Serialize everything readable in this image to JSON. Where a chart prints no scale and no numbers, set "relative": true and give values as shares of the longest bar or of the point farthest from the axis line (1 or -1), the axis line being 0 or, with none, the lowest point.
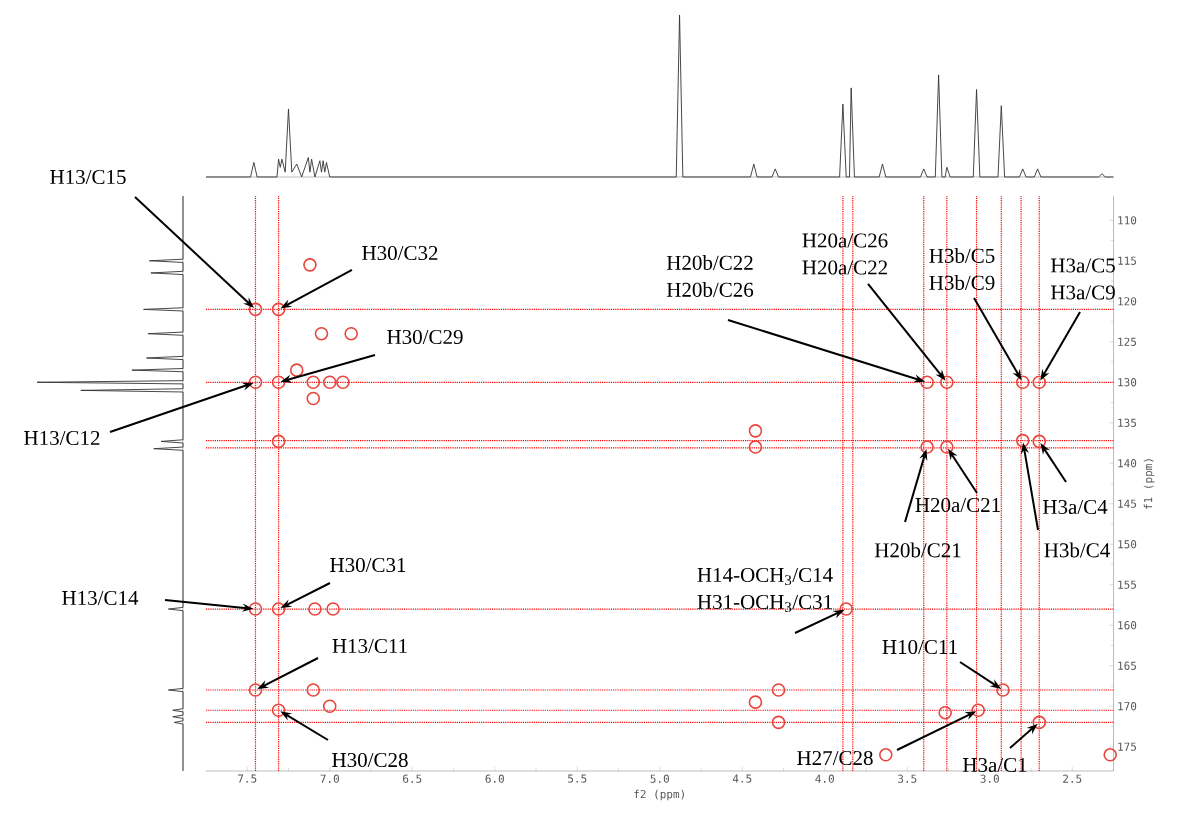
{
  "chart_data": [
    {
      "type": "line",
      "relative": true,
      "xlim": [
        7.75,
        2.25
      ],
      "series": [
        {
          "color": "#333333",
          "x": [
            7.75,
            7.48,
            7.46,
            7.44,
            7.32,
            7.31,
            7.3,
            7.29,
            7.27,
            7.25,
            7.23,
            7.2,
            7.17,
            7.13,
            7.12,
            7.11,
            7.09,
            7.06,
            7.05,
            7.04,
            7.03,
            7.02,
            7.0,
            4.9,
            4.88,
            4.86,
            4.45,
            4.43,
            4.41,
            4.32,
            4.3,
            4.28,
            3.91,
            3.89,
            3.87,
            3.85,
            3.84,
            3.82,
            3.67,
            3.65,
            3.63,
            3.42,
            3.4,
            3.38,
            3.33,
            3.31,
            3.29,
            3.27,
            3.26,
            3.24,
            3.1,
            3.08,
            3.06,
            2.95,
            2.93,
            2.91,
            2.82,
            2.8,
            2.78,
            2.73,
            2.71,
            2.69,
            2.34,
            2.32,
            2.3,
            2.25
          ],
          "values": [
            0,
            0,
            0.09,
            0,
            0,
            0.11,
            0.06,
            0.11,
            0.03,
            0.42,
            0.03,
            0.08,
            0,
            0.12,
            0.03,
            0.11,
            0,
            0.1,
            0.03,
            0.1,
            0.03,
            0.09,
            0,
            0,
            1,
            0,
            0,
            0.08,
            0,
            0,
            0.05,
            0,
            0,
            0.45,
            0,
            0,
            0.55,
            0,
            0,
            0.08,
            0,
            0,
            0.05,
            0,
            0,
            0.63,
            0,
            0,
            0.06,
            0,
            0,
            0.54,
            0,
            0,
            0.44,
            0,
            0,
            0.05,
            0,
            0,
            0.05,
            0,
            0,
            0.02,
            0,
            0
          ]
        }
      ]
    },
    {
      "type": "scatter",
      "xlabel": "f2 (ppm)",
      "ylabel": "f1 (ppm)",
      "marker": "circle",
      "xlim": [
        7.75,
        2.25
      ],
      "ylim": [
        178,
        107
      ],
      "xticks": [
        7.5,
        {
          "value": 7,
          "label": "7.0"
        },
        6.5,
        {
          "value": 6,
          "label": "6.0"
        },
        5.5,
        {
          "value": 5,
          "label": "5.0"
        },
        4.5,
        {
          "value": 4,
          "label": "4.0"
        },
        3.5,
        {
          "value": 3,
          "label": "3.0"
        },
        2.5
      ],
      "yticks": [
        110,
        115,
        120,
        125,
        130,
        135,
        140,
        145,
        150,
        155,
        160,
        165,
        170,
        175
      ],
      "series": [
        {
          "color": "#e8453c",
          "x": [
            7.45,
            7.31,
            7.12,
            7.05,
            6.87,
            7.45,
            7.31,
            7.2,
            7.1,
            7.0,
            6.92,
            7.1,
            7.31,
            4.42,
            4.42,
            3.38,
            3.26,
            2.8,
            2.7,
            3.38,
            3.26,
            2.8,
            2.7,
            7.45,
            7.31,
            7.09,
            6.98,
            3.87,
            7.45,
            7.31,
            7.1,
            7.0,
            4.28,
            4.28,
            4.42,
            3.63,
            2.92,
            3.07,
            3.27,
            2.7,
            2.27
          ],
          "values": [
            121,
            121,
            115.5,
            124,
            124,
            130,
            130,
            128.5,
            130,
            130,
            130,
            132,
            137.3,
            136,
            138,
            130,
            130,
            130,
            130,
            138,
            138,
            137.2,
            137.3,
            158,
            158,
            158,
            158,
            158,
            168,
            170.5,
            168,
            170,
            168,
            172,
            169.5,
            176,
            168,
            170.5,
            170.8,
            172,
            176
          ]
        }
      ],
      "ref_lines": [
        {
          "axis": "x",
          "value": 7.45,
          "color": "#ff0000",
          "line_style": "dotted"
        },
        {
          "axis": "x",
          "value": 7.31,
          "color": "#ff0000",
          "line_style": "dotted"
        },
        {
          "axis": "x",
          "value": 3.89,
          "color": "#ff0000",
          "line_style": "dotted"
        },
        {
          "axis": "x",
          "value": 3.83,
          "color": "#ff0000",
          "line_style": "dotted"
        },
        {
          "axis": "x",
          "value": 3.4,
          "color": "#ff0000",
          "line_style": "dotted"
        },
        {
          "axis": "x",
          "value": 3.26,
          "color": "#ff0000",
          "line_style": "dotted"
        },
        {
          "axis": "x",
          "value": 3.08,
          "color": "#ff0000",
          "line_style": "dotted"
        },
        {
          "axis": "x",
          "value": 2.93,
          "color": "#ff0000",
          "line_style": "dotted"
        },
        {
          "axis": "x",
          "value": 2.81,
          "color": "#ff0000",
          "line_style": "dotted"
        },
        {
          "axis": "x",
          "value": 2.7,
          "color": "#ff0000",
          "line_style": "dotted"
        },
        {
          "axis": "y",
          "value": 121,
          "color": "#ff0000",
          "line_style": "dotted"
        },
        {
          "axis": "y",
          "value": 130,
          "color": "#ff0000",
          "line_style": "dotted"
        },
        {
          "axis": "y",
          "value": 137.2,
          "color": "#ff0000",
          "line_style": "dotted"
        },
        {
          "axis": "y",
          "value": 138.1,
          "color": "#ff0000",
          "line_style": "dotted"
        },
        {
          "axis": "y",
          "value": 158,
          "color": "#ff0000",
          "line_style": "dotted"
        },
        {
          "axis": "y",
          "value": 168,
          "color": "#ff0000",
          "line_style": "dotted"
        },
        {
          "axis": "y",
          "value": 170.5,
          "color": "#ff0000",
          "line_style": "dotted"
        },
        {
          "axis": "y",
          "value": 172,
          "color": "#ff0000",
          "line_style": "dotted"
        }
      ],
      "annotations": [
        {
          "text": "H13/C15",
          "x": 7.45,
          "y": 121
        },
        {
          "text": "H30/C32",
          "x": 7.31,
          "y": 121
        },
        {
          "text": "H30/C29",
          "x": 7.31,
          "y": 130
        },
        {
          "text": "H13/C12",
          "x": 7.45,
          "y": 130
        },
        {
          "text": "H20b/C22 H20b/C26",
          "x": 3.38,
          "y": 130
        },
        {
          "text": "H20a/C26 H20a/C22",
          "x": 3.26,
          "y": 130
        },
        {
          "text": "H3b/C5 H3b/C9",
          "x": 2.8,
          "y": 130
        },
        {
          "text": "H3a/C5 H3a/C9",
          "x": 2.7,
          "y": 130
        },
        {
          "text": "H20b/C21",
          "x": 3.38,
          "y": 138
        },
        {
          "text": "H20a/C21",
          "x": 3.26,
          "y": 138
        },
        {
          "text": "H3a/C4",
          "x": 2.7,
          "y": 137.3
        },
        {
          "text": "H3b/C4",
          "x": 2.8,
          "y": 137.2
        },
        {
          "text": "H13/C14",
          "x": 7.45,
          "y": 158
        },
        {
          "text": "H30/C31",
          "x": 7.31,
          "y": 158
        },
        {
          "text": "H14-OCH$_{3}$/C14 H31-OCH$_{3}$/C31",
          "x": 3.87,
          "y": 158
        },
        {
          "text": "H13/C11",
          "x": 7.45,
          "y": 168
        },
        {
          "text": "H30/C28",
          "x": 7.31,
          "y": 170.5
        },
        {
          "text": "H10/C11",
          "x": 2.92,
          "y": 168
        },
        {
          "text": "H27/C28",
          "x": 3.07,
          "y": 170.5
        },
        {
          "text": "H3a/C1",
          "x": 2.7,
          "y": 172
        }
      ]
    },
    {
      "type": "line",
      "orientation": "horizontal",
      "relative": true,
      "ylim": [
        178,
        107
      ],
      "series": [
        {
          "color": "#333333",
          "x": [
            107,
            114.8,
            115,
            115.2,
            116.3,
            116.5,
            116.7,
            120.8,
            121,
            121.2,
            123.8,
            124,
            124.2,
            126.8,
            127,
            127.2,
            128.3,
            128.5,
            128.7,
            129.8,
            130,
            130.2,
            130.8,
            131,
            131.2,
            137.1,
            137.3,
            137.5,
            138,
            138.2,
            138.4,
            157.8,
            158,
            158.2,
            167.8,
            168,
            168.2,
            170.3,
            170.5,
            170.7,
            171.1,
            171.3,
            171.5,
            171.8,
            172,
            172.2,
            178
          ],
          "values": [
            0,
            0,
            -0.23,
            0,
            0,
            -0.22,
            0,
            0,
            -0.27,
            0,
            0,
            -0.24,
            0,
            0,
            -0.25,
            0,
            0,
            -0.35,
            0,
            0,
            -1,
            0,
            0,
            -0.7,
            0,
            0,
            -0.15,
            0,
            0,
            -0.2,
            0,
            0,
            -0.1,
            0,
            0,
            -0.1,
            0,
            0,
            -0.07,
            0,
            0,
            -0.07,
            0,
            0,
            -0.06,
            0,
            0
          ]
        }
      ]
    }
  ]
}
